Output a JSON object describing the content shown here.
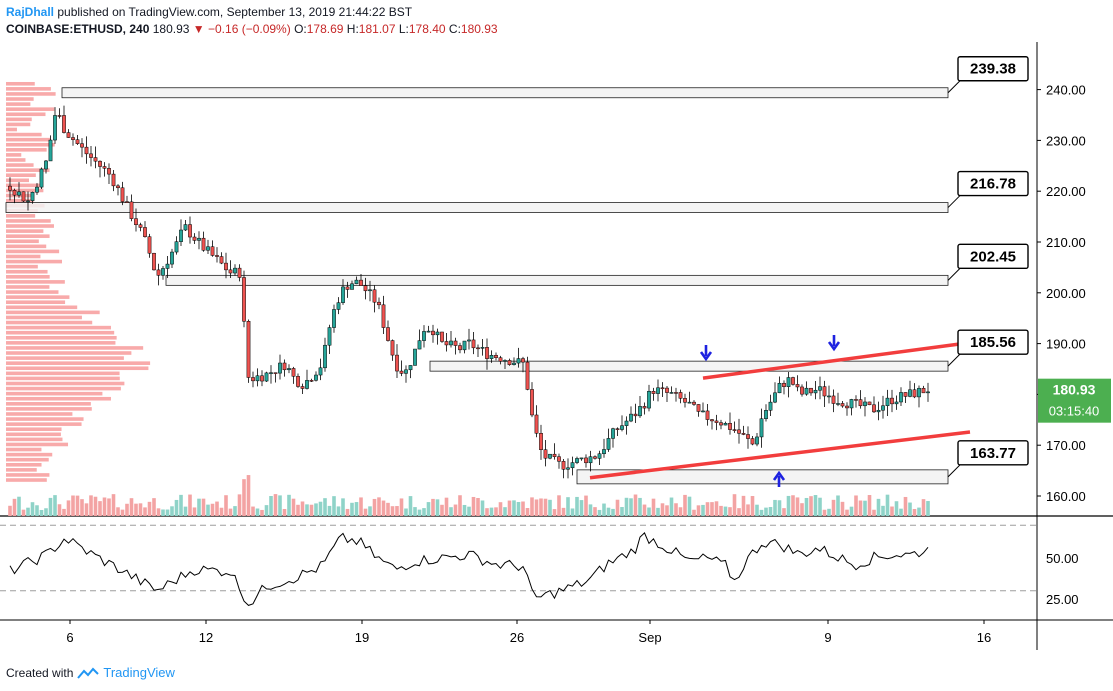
{
  "header": {
    "author": "RajDhall",
    "published": "published on TradingView.com, September 13, 2019 21:44:22 BST",
    "symbol": "COINBASE:ETHUSD, 240",
    "last": "180.93",
    "change": "−0.16 (−0.09%)",
    "o_label": "O:",
    "o": "178.69",
    "h_label": "H:",
    "h": "181.07",
    "l_label": "L:",
    "l": "178.40",
    "c_label": "C:",
    "c": "180.93"
  },
  "footer": {
    "created_with": "Created with",
    "brand": "TradingView"
  },
  "colors": {
    "up": "#26a69a",
    "down": "#ef5350",
    "candle_border": "#000000",
    "trendline": "#f23d3d",
    "arrow": "#1e22e0",
    "price_badge": "#4caf50",
    "vol_up": "#8fd3c8",
    "vol_down": "#f3a3a3",
    "profile": "#f7a1a1"
  },
  "chart_data": {
    "type": "candlestick",
    "price_axis": {
      "ticks": [
        160,
        170,
        180,
        190,
        200,
        210,
        220,
        230,
        240
      ],
      "labels": [
        "160.00",
        "170.00",
        "180.00",
        "190.00",
        "200.00",
        "210.00",
        "220.00",
        "230.00",
        "240.00"
      ],
      "ylim": [
        155.7,
        249.5
      ]
    },
    "rsi_axis": {
      "ticks": [
        25,
        50
      ],
      "labels": [
        "25.00",
        "50.00"
      ],
      "guides": [
        30,
        70
      ],
      "ylim": [
        15,
        75
      ]
    },
    "time_axis": {
      "labels": [
        "6",
        "12",
        "19",
        "26",
        "Sep",
        "9",
        "16"
      ]
    },
    "current_price": "180.93",
    "countdown": "03:15:40",
    "levels": [
      {
        "label": "239.38",
        "price": 239.38
      },
      {
        "label": "216.78",
        "price": 216.78
      },
      {
        "label": "202.45",
        "price": 202.45
      },
      {
        "label": "185.56",
        "price": 185.56
      },
      {
        "label": "163.77",
        "price": 163.77
      }
    ],
    "price_path": [
      [
        0,
        221
      ],
      [
        2,
        218
      ],
      [
        4,
        226
      ],
      [
        5,
        236
      ],
      [
        6,
        232
      ],
      [
        8,
        228
      ],
      [
        11,
        223
      ],
      [
        13,
        216
      ],
      [
        14,
        213
      ],
      [
        15,
        209
      ],
      [
        16,
        203
      ],
      [
        18,
        209
      ],
      [
        19,
        213
      ],
      [
        21,
        209
      ],
      [
        24,
        204
      ],
      [
        25,
        204
      ],
      [
        26,
        183
      ],
      [
        28,
        184
      ],
      [
        30,
        186
      ],
      [
        31,
        183
      ],
      [
        32,
        182
      ],
      [
        34,
        186
      ],
      [
        35,
        195
      ],
      [
        36,
        200
      ],
      [
        37,
        202
      ],
      [
        38,
        202
      ],
      [
        40,
        198
      ],
      [
        41,
        192
      ],
      [
        42,
        186
      ],
      [
        43,
        184
      ],
      [
        44,
        188
      ],
      [
        45,
        193
      ],
      [
        46,
        193
      ],
      [
        47,
        190
      ],
      [
        49,
        189
      ],
      [
        50,
        190
      ],
      [
        52,
        188
      ],
      [
        54,
        187
      ],
      [
        56,
        186
      ],
      [
        57,
        174
      ],
      [
        58,
        168
      ],
      [
        60,
        166
      ],
      [
        62,
        167
      ],
      [
        64,
        168
      ],
      [
        66,
        173
      ],
      [
        68,
        176
      ],
      [
        69,
        178
      ],
      [
        70,
        181
      ],
      [
        72,
        180
      ],
      [
        74,
        178
      ],
      [
        75,
        176
      ],
      [
        77,
        175
      ],
      [
        79,
        173
      ],
      [
        81,
        170
      ],
      [
        82,
        176
      ],
      [
        84,
        182
      ],
      [
        85,
        183
      ],
      [
        86,
        180
      ],
      [
        88,
        181
      ],
      [
        90,
        179
      ],
      [
        92,
        178
      ],
      [
        94,
        177
      ],
      [
        96,
        179
      ],
      [
        98,
        180
      ],
      [
        100,
        181
      ]
    ],
    "rsi_path": [
      [
        0,
        42
      ],
      [
        4,
        52
      ],
      [
        6,
        62
      ],
      [
        9,
        52
      ],
      [
        12,
        43
      ],
      [
        16,
        30
      ],
      [
        20,
        43
      ],
      [
        24,
        42
      ],
      [
        26,
        22
      ],
      [
        28,
        33
      ],
      [
        31,
        38
      ],
      [
        34,
        45
      ],
      [
        36,
        62
      ],
      [
        38,
        60
      ],
      [
        40,
        50
      ],
      [
        42,
        43
      ],
      [
        44,
        48
      ],
      [
        47,
        50
      ],
      [
        50,
        52
      ],
      [
        53,
        46
      ],
      [
        56,
        45
      ],
      [
        57,
        25
      ],
      [
        60,
        30
      ],
      [
        63,
        36
      ],
      [
        65,
        46
      ],
      [
        68,
        55
      ],
      [
        69,
        64
      ],
      [
        71,
        58
      ],
      [
        74,
        48
      ],
      [
        76,
        50
      ],
      [
        78,
        45
      ],
      [
        79,
        35
      ],
      [
        80,
        47
      ],
      [
        82,
        60
      ],
      [
        84,
        58
      ],
      [
        86,
        52
      ],
      [
        88,
        56
      ],
      [
        90,
        51
      ],
      [
        92,
        46
      ],
      [
        94,
        50
      ],
      [
        96,
        52
      ],
      [
        98,
        52
      ],
      [
        100,
        55
      ]
    ]
  }
}
